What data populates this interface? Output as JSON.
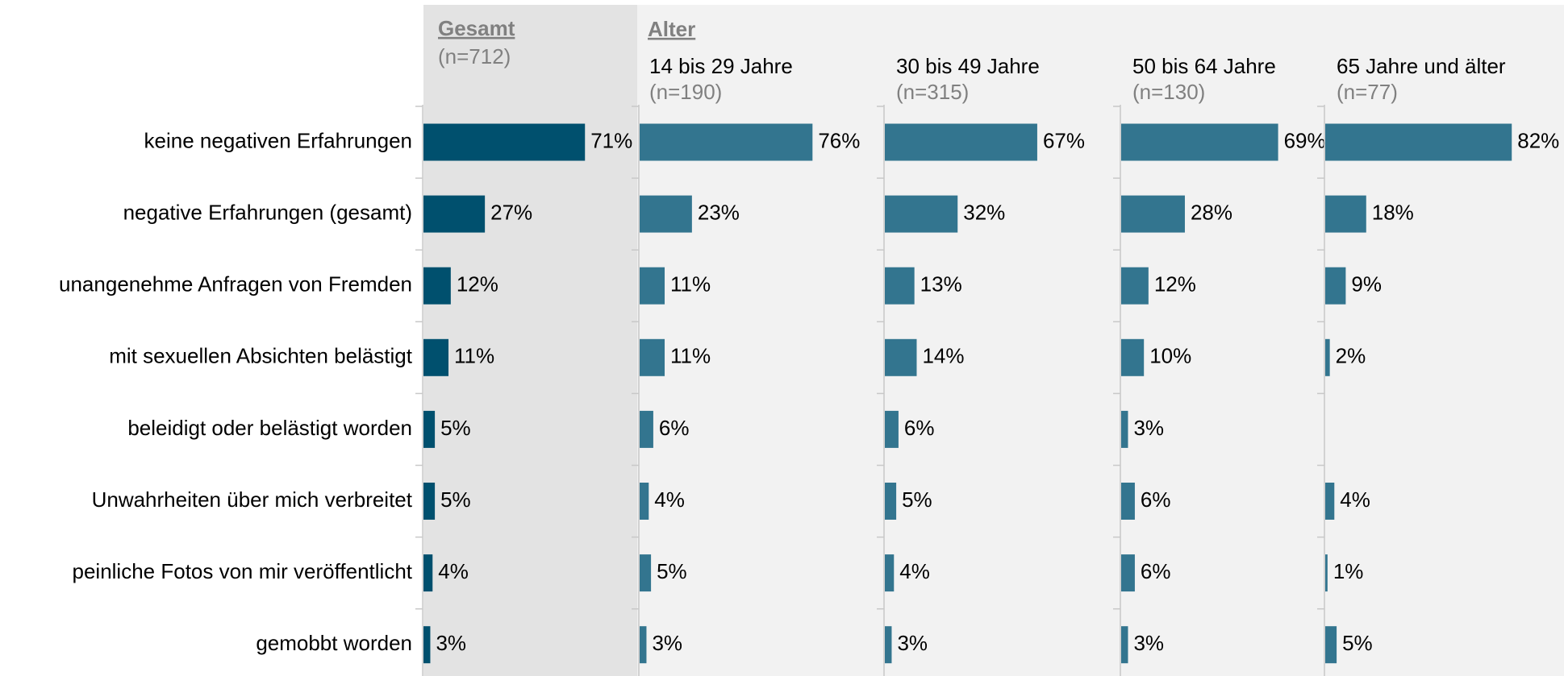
{
  "chart_data": {
    "type": "bar",
    "orientation": "horizontal",
    "group_label": "Alter",
    "categories": [
      "keine negativen Erfahrungen",
      "negative Erfahrungen (gesamt)",
      "unangenehme Anfragen von Fremden",
      "mit sexuellen Absichten belästigt",
      "beleidigt oder belästigt worden",
      "Unwahrheiten über mich verbreitet",
      "peinliche Fotos von mir veröffentlicht",
      "gemobbt worden"
    ],
    "xlim": [
      0,
      100
    ],
    "series": [
      {
        "name": "Gesamt",
        "subtitle": "(n=712)",
        "color": "#00506e",
        "values": [
          71,
          27,
          12,
          11,
          5,
          5,
          4,
          3
        ],
        "value_labels": [
          "71%",
          "27%",
          "12%",
          "11%",
          "5%",
          "5%",
          "4%",
          "3%"
        ]
      },
      {
        "name": "14 bis 29 Jahre",
        "subtitle": "(n=190)",
        "color": "#33758f",
        "values": [
          76,
          23,
          11,
          11,
          6,
          4,
          5,
          3
        ],
        "value_labels": [
          "76%",
          "23%",
          "11%",
          "11%",
          "6%",
          "4%",
          "5%",
          "3%"
        ]
      },
      {
        "name": "30 bis 49 Jahre",
        "subtitle": "(n=315)",
        "color": "#33758f",
        "values": [
          67,
          32,
          13,
          14,
          6,
          5,
          4,
          3
        ],
        "value_labels": [
          "67%",
          "32%",
          "13%",
          "14%",
          "6%",
          "5%",
          "4%",
          "3%"
        ]
      },
      {
        "name": "50 bis 64 Jahre",
        "subtitle": "(n=130)",
        "color": "#33758f",
        "values": [
          69,
          28,
          12,
          10,
          3,
          6,
          6,
          3
        ],
        "value_labels": [
          "69%",
          "28%",
          "12%",
          "10%",
          "3%",
          "6%",
          "6%",
          "3%"
        ]
      },
      {
        "name": "65 Jahre und älter",
        "subtitle": "(n=77)",
        "color": "#33758f",
        "values": [
          82,
          18,
          9,
          2,
          null,
          4,
          1,
          5
        ],
        "value_labels": [
          "82%",
          "18%",
          "9%",
          "2%",
          null,
          "4%",
          "1%",
          "5%"
        ]
      }
    ]
  }
}
